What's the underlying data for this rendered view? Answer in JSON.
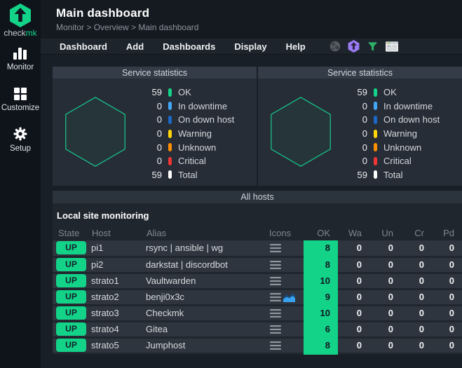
{
  "colors": {
    "accent_green": "#13d389",
    "in_downtime_blue": "#42a7f5",
    "on_down_host_blue": "#1c68c9",
    "warning_yellow": "#ffd60a",
    "unknown_orange": "#ff8d00",
    "critical_red": "#f43535",
    "total_white": "#ffffff"
  },
  "sidebar": {
    "logo_text_primary": "check",
    "logo_text_accent": "mk",
    "items": [
      {
        "label": "Monitor",
        "icon": "bar-chart-icon"
      },
      {
        "label": "Customize",
        "icon": "grid-icon"
      },
      {
        "label": "Setup",
        "icon": "gear-icon"
      }
    ]
  },
  "header": {
    "title": "Main dashboard",
    "breadcrumb": "Monitor > Overview > Main dashboard"
  },
  "menubar": {
    "items": [
      "Dashboard",
      "Add",
      "Dashboards",
      "Display",
      "Help"
    ],
    "icons": [
      "globe-icon",
      "checkmk-hexagon-icon",
      "filter-icon",
      "window-icon"
    ]
  },
  "service_statistics_panels": [
    {
      "title": "Service statistics",
      "stats": [
        {
          "value": 59,
          "label": "OK",
          "color": "#13d389"
        },
        {
          "value": 0,
          "label": "In downtime",
          "color": "#42a7f5"
        },
        {
          "value": 0,
          "label": "On down host",
          "color": "#1c68c9"
        },
        {
          "value": 0,
          "label": "Warning",
          "color": "#ffd60a"
        },
        {
          "value": 0,
          "label": "Unknown",
          "color": "#ff8d00"
        },
        {
          "value": 0,
          "label": "Critical",
          "color": "#f43535"
        },
        {
          "value": 59,
          "label": "Total",
          "color": "#ffffff"
        }
      ]
    },
    {
      "title": "Service statistics",
      "stats": [
        {
          "value": 59,
          "label": "OK",
          "color": "#13d389"
        },
        {
          "value": 0,
          "label": "In downtime",
          "color": "#42a7f5"
        },
        {
          "value": 0,
          "label": "On down host",
          "color": "#1c68c9"
        },
        {
          "value": 0,
          "label": "Warning",
          "color": "#ffd60a"
        },
        {
          "value": 0,
          "label": "Unknown",
          "color": "#ff8d00"
        },
        {
          "value": 0,
          "label": "Critical",
          "color": "#f43535"
        },
        {
          "value": 59,
          "label": "Total",
          "color": "#ffffff"
        }
      ]
    }
  ],
  "hosts_dashlet": {
    "title": "All hosts",
    "view_title": "Local site monitoring",
    "columns": [
      "State",
      "Host",
      "Alias",
      "Icons",
      "OK",
      "Wa",
      "Un",
      "Cr",
      "Pd"
    ],
    "rows": [
      {
        "state": "UP",
        "host": "pi1",
        "alias": "rsync | ansible | wg",
        "icons": [
          "menu-icon"
        ],
        "ok": 8,
        "wa": 0,
        "un": 0,
        "cr": 0,
        "pd": 0
      },
      {
        "state": "UP",
        "host": "pi2",
        "alias": "darkstat | discordbot",
        "icons": [
          "menu-icon"
        ],
        "ok": 8,
        "wa": 0,
        "un": 0,
        "cr": 0,
        "pd": 0
      },
      {
        "state": "UP",
        "host": "strato1",
        "alias": "Vaultwarden",
        "icons": [
          "menu-icon"
        ],
        "ok": 10,
        "wa": 0,
        "un": 0,
        "cr": 0,
        "pd": 0
      },
      {
        "state": "UP",
        "host": "strato2",
        "alias": "benji0x3c",
        "icons": [
          "menu-icon",
          "graph-icon"
        ],
        "ok": 9,
        "wa": 0,
        "un": 0,
        "cr": 0,
        "pd": 0
      },
      {
        "state": "UP",
        "host": "strato3",
        "alias": "Checkmk",
        "icons": [
          "menu-icon"
        ],
        "ok": 10,
        "wa": 0,
        "un": 0,
        "cr": 0,
        "pd": 0
      },
      {
        "state": "UP",
        "host": "strato4",
        "alias": "Gitea",
        "icons": [
          "menu-icon"
        ],
        "ok": 6,
        "wa": 0,
        "un": 0,
        "cr": 0,
        "pd": 0
      },
      {
        "state": "UP",
        "host": "strato5",
        "alias": "Jumphost",
        "icons": [
          "menu-icon"
        ],
        "ok": 8,
        "wa": 0,
        "un": 0,
        "cr": 0,
        "pd": 0
      }
    ]
  }
}
